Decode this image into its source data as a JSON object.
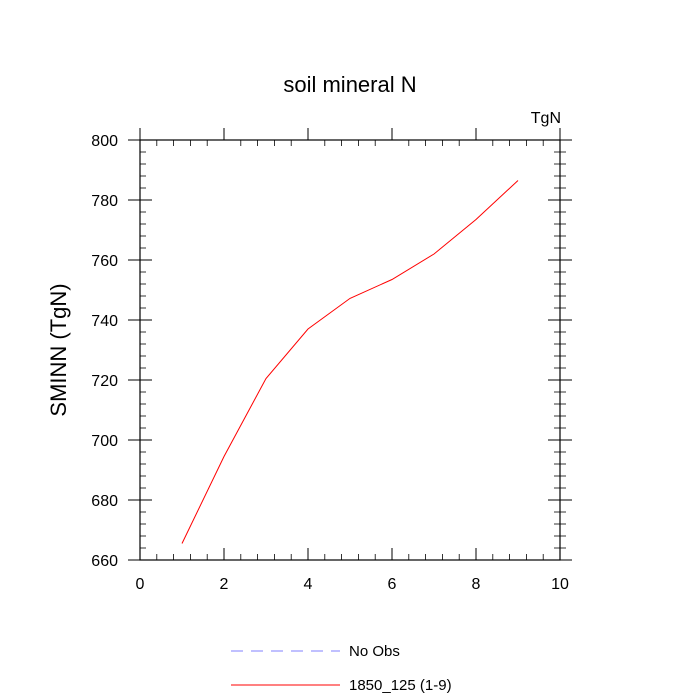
{
  "chart_data": {
    "type": "line",
    "title": "soil mineral N",
    "units_label": "TgN",
    "xlabel": "",
    "ylabel": "SMINN  (TgN)",
    "xlim": [
      0,
      10
    ],
    "ylim": [
      660,
      800
    ],
    "x_ticks": [
      0,
      2,
      4,
      6,
      8,
      10
    ],
    "y_ticks": [
      660,
      680,
      700,
      720,
      740,
      760,
      780,
      800
    ],
    "grid": false,
    "legend_position": "bottom",
    "series": [
      {
        "name": "No Obs",
        "color": "#8080ff",
        "dash": "dashed",
        "x": [],
        "y": []
      },
      {
        "name": "1850_125 (1-9)",
        "color": "#ff0000",
        "dash": "solid",
        "x": [
          1,
          2,
          3,
          4,
          5,
          6,
          7,
          8,
          9
        ],
        "y": [
          665.5,
          694.5,
          720.5,
          737.0,
          747.2,
          753.5,
          762.0,
          773.5,
          786.5
        ]
      }
    ]
  }
}
